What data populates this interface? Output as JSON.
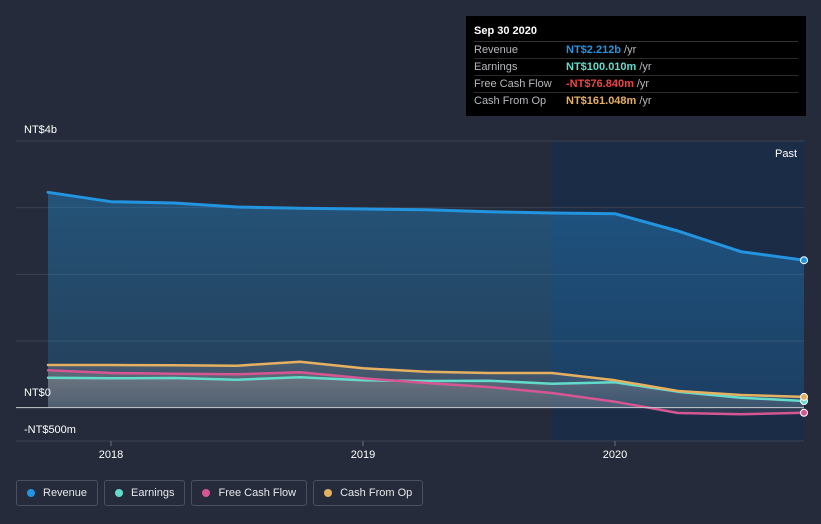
{
  "colors": {
    "background": "#252b3a",
    "revenue": "#2394df",
    "earnings": "#63dbcb",
    "free_cash_flow": "#d55693",
    "cash_from_op": "#e6b062"
  },
  "tooltip": {
    "date": "Sep 30 2020",
    "rows": [
      {
        "label": "Revenue",
        "value": "NT$2.212b",
        "unit": "/yr",
        "color": "#2394df"
      },
      {
        "label": "Earnings",
        "value": "NT$100.010m",
        "unit": "/yr",
        "color": "#63dbcb"
      },
      {
        "label": "Free Cash Flow",
        "value": "-NT$76.840m",
        "unit": "/yr",
        "color": "#f04545"
      },
      {
        "label": "Cash From Op",
        "value": "NT$161.048m",
        "unit": "/yr",
        "color": "#e6b062"
      }
    ]
  },
  "legend": [
    {
      "label": "Revenue",
      "color": "#2394df"
    },
    {
      "label": "Earnings",
      "color": "#63dbcb"
    },
    {
      "label": "Free Cash Flow",
      "color": "#d55693"
    },
    {
      "label": "Cash From Op",
      "color": "#e6b062"
    }
  ],
  "chart_data": {
    "type": "area",
    "title": "",
    "unit": "NT$ millions",
    "y_label_top": "NT$4b",
    "y_label_zero": "NT$0",
    "y_label_bottom": "-NT$500m",
    "past_label": "Past",
    "ylim": [
      -500,
      4000
    ],
    "xlim": [
      2017.75,
      2020.75
    ],
    "x_ticks": [
      {
        "value": 2018.0,
        "label": "2018"
      },
      {
        "value": 2019.0,
        "label": "2019"
      },
      {
        "value": 2020.0,
        "label": "2020"
      }
    ],
    "grid_values": [
      3000,
      2000,
      1000
    ],
    "highlight_start": 2019.75,
    "series": [
      {
        "name": "Revenue",
        "key": "revenue",
        "x": [
          2017.75,
          2018.0,
          2018.25,
          2018.5,
          2018.75,
          2019.0,
          2019.25,
          2019.5,
          2019.75,
          2020.0,
          2020.25,
          2020.5,
          2020.75
        ],
        "values": [
          3230,
          3090,
          3070,
          3010,
          2990,
          2980,
          2970,
          2940,
          2920,
          2910,
          2650,
          2340,
          2212
        ]
      },
      {
        "name": "Earnings",
        "key": "earnings",
        "x": [
          2017.75,
          2018.0,
          2018.25,
          2018.5,
          2018.75,
          2019.0,
          2019.25,
          2019.5,
          2019.75,
          2020.0,
          2020.25,
          2020.5,
          2020.75
        ],
        "values": [
          450,
          440,
          445,
          420,
          455,
          410,
          400,
          405,
          360,
          380,
          240,
          150,
          100
        ]
      },
      {
        "name": "Free Cash Flow",
        "key": "free_cash_flow",
        "x": [
          2017.75,
          2018.0,
          2018.25,
          2018.5,
          2018.75,
          2019.0,
          2019.25,
          2019.5,
          2019.75,
          2020.0,
          2020.25,
          2020.5,
          2020.75
        ],
        "values": [
          560,
          520,
          510,
          500,
          530,
          440,
          370,
          310,
          220,
          90,
          -80,
          -100,
          -77
        ]
      },
      {
        "name": "Cash From Op",
        "key": "cash_from_op",
        "x": [
          2017.75,
          2018.0,
          2018.25,
          2018.5,
          2018.75,
          2019.0,
          2019.25,
          2019.5,
          2019.75,
          2020.0,
          2020.25,
          2020.5,
          2020.75
        ],
        "values": [
          640,
          640,
          635,
          630,
          690,
          590,
          540,
          520,
          520,
          410,
          250,
          190,
          161
        ]
      }
    ]
  }
}
